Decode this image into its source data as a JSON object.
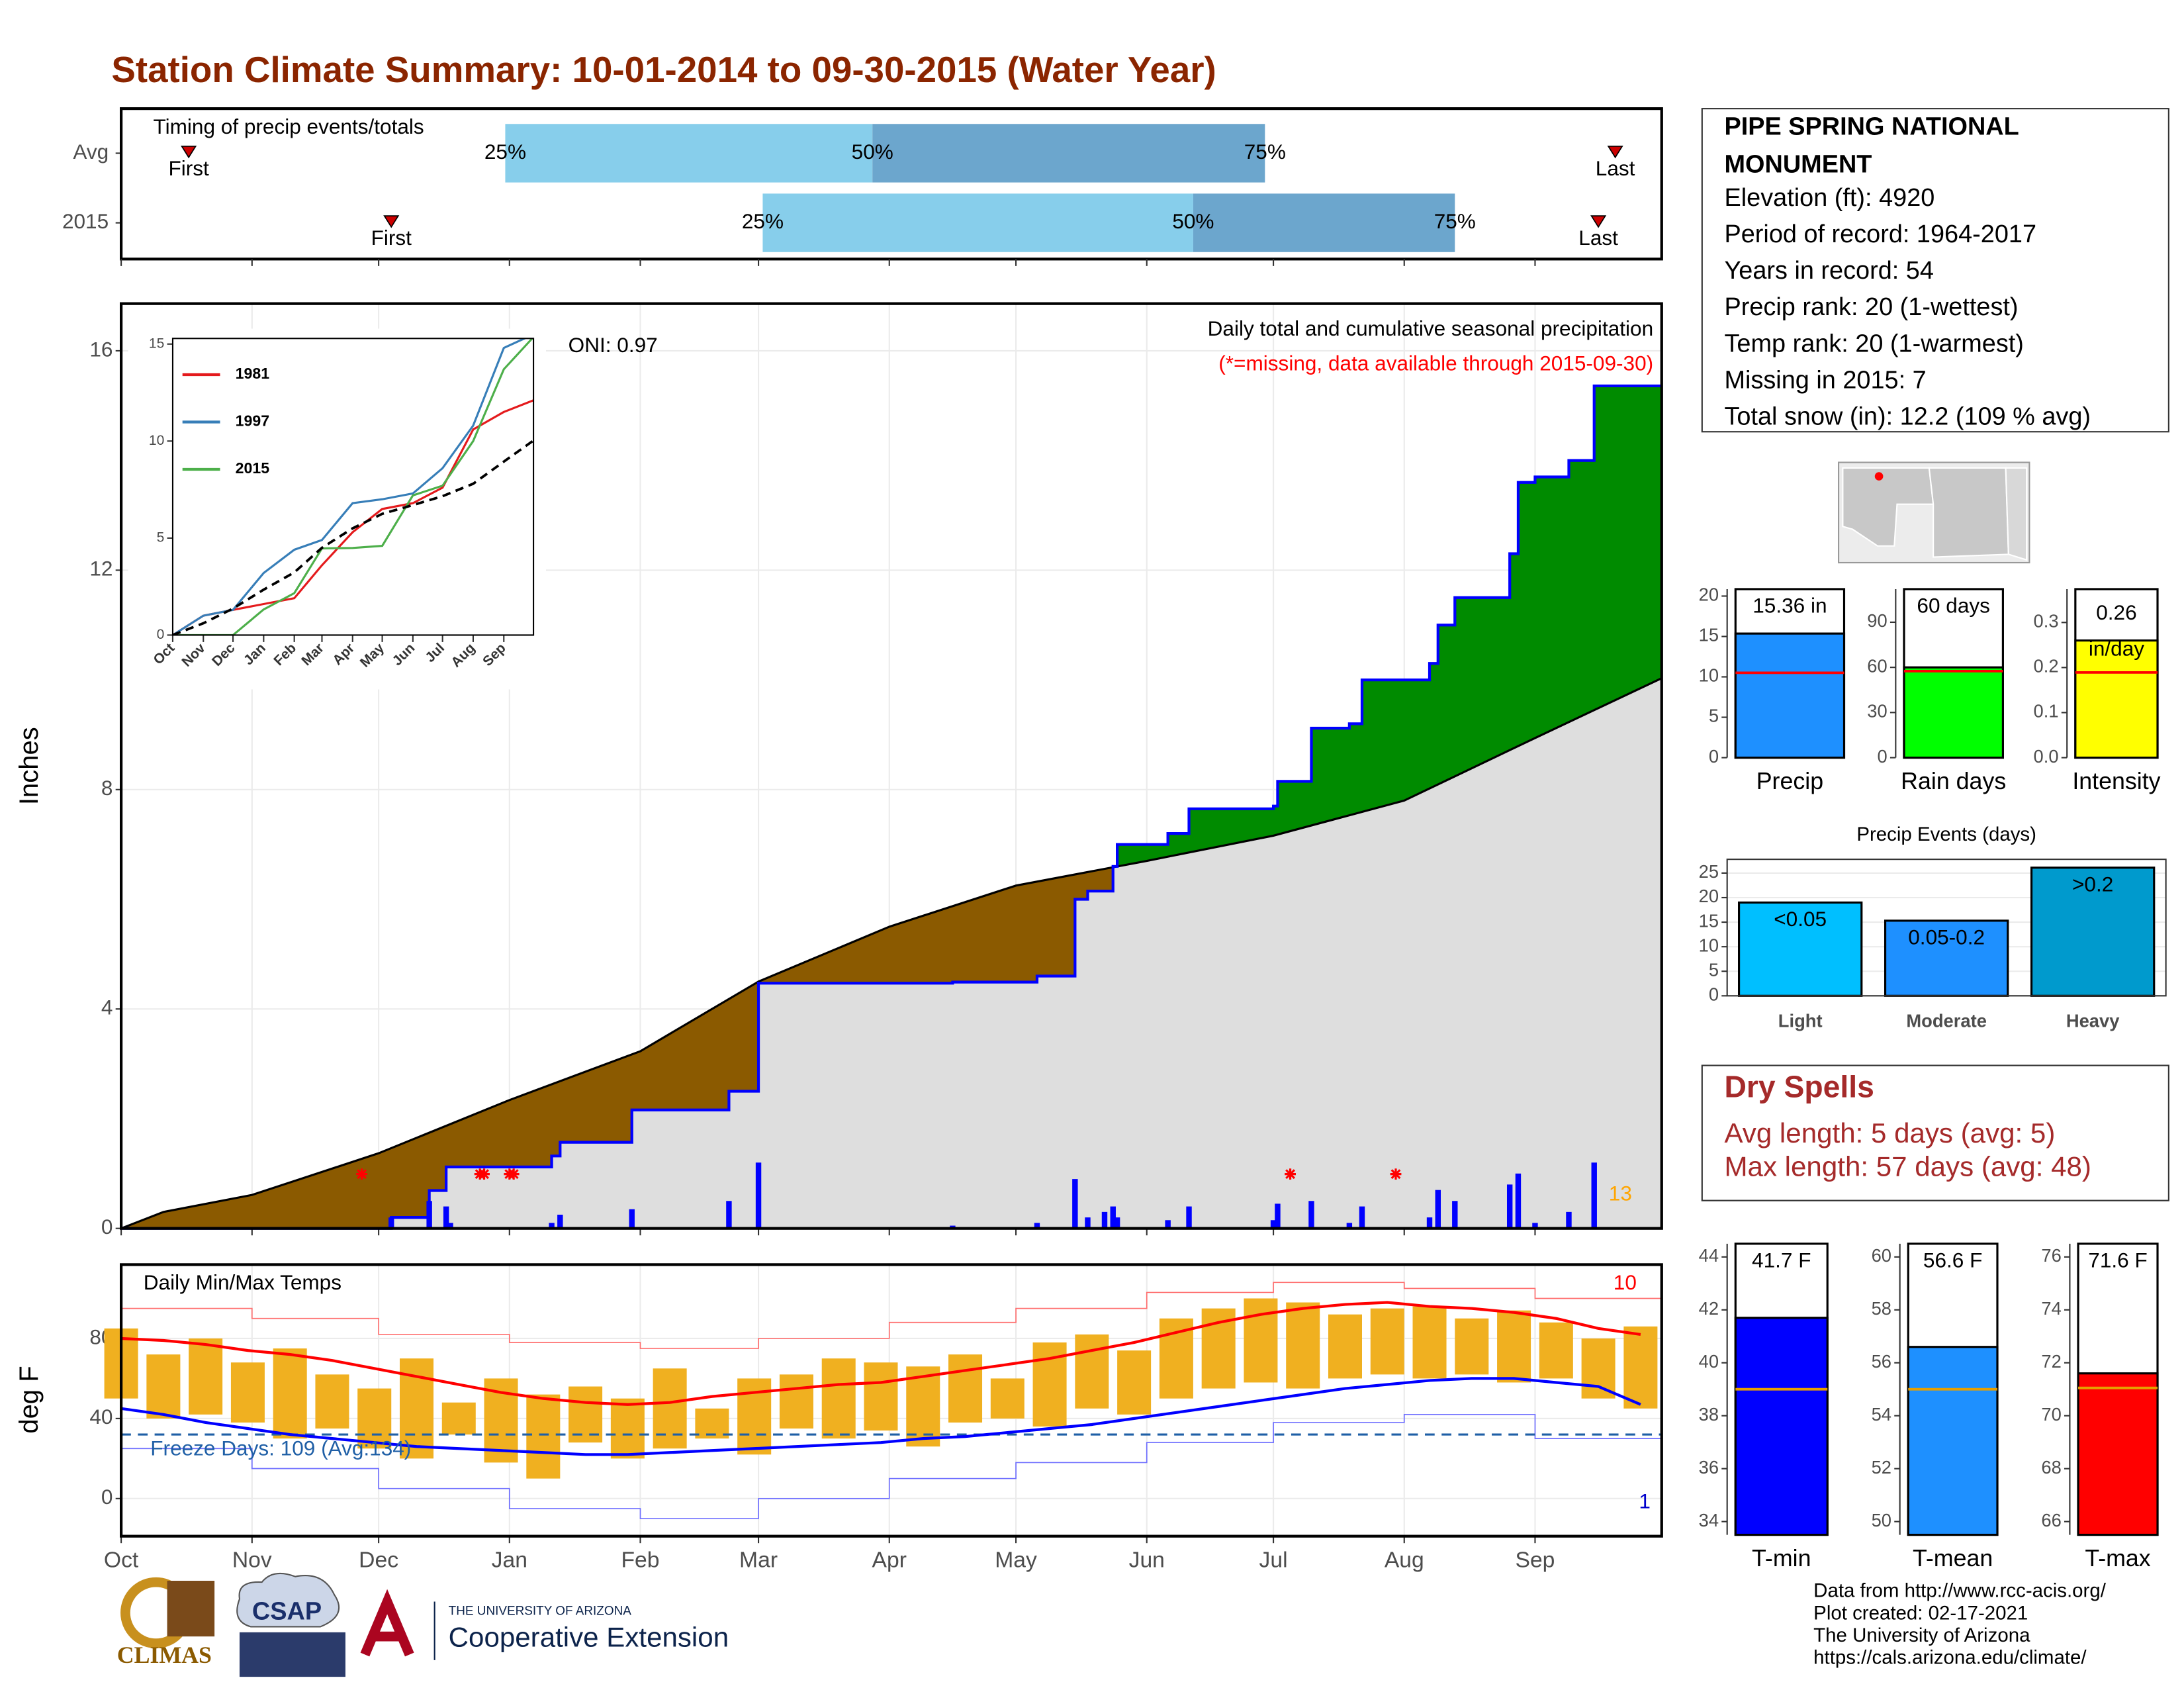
{
  "title": "Station Climate Summary: 10-01-2014 to 09-30-2015 (Water Year)",
  "chart_data": [
    {
      "type": "timing",
      "title": "Timing of precip events/totals",
      "categories": [
        "Avg",
        "2015"
      ],
      "rows": [
        {
          "first": 16,
          "q25": 91,
          "q50": 178,
          "q75": 271,
          "last": 354
        },
        {
          "first": 64,
          "q25": 152,
          "q50": 254,
          "q75": 316,
          "last": 350
        }
      ],
      "quartile_labels": [
        "25%",
        "50%",
        "75%"
      ],
      "first_label": "First",
      "last_label": "Last",
      "colors": [
        "#87ceeb",
        "#6ca6cd"
      ],
      "marker_color": "#cc0000",
      "xlim": [
        0,
        365
      ],
      "xticks": [
        0,
        31,
        61,
        92,
        123,
        151,
        182,
        212,
        243,
        273,
        304,
        335
      ]
    },
    {
      "type": "cumulative",
      "title": "Daily total and cumulative seasonal precipitation",
      "subtitle": "(*=missing, data available through 2015-09-30)",
      "annotation": "ONI: 0.97",
      "y_label": "Inches",
      "record_days": 13,
      "series": [
        {
          "color": "#000000",
          "step": false,
          "x": [
            0,
            10,
            31,
            61,
            92,
            123,
            151,
            182,
            212,
            243,
            273,
            304,
            335,
            365
          ],
          "values": [
            0,
            0.3,
            0.61,
            1.37,
            2.34,
            3.23,
            4.5,
            5.5,
            6.25,
            6.7,
            7.16,
            7.8,
            8.94,
            10.03
          ]
        },
        {
          "color": "#0000ff",
          "step": true,
          "x": [
            0,
            64,
            73,
            77,
            102,
            104,
            121,
            144,
            151,
            197,
            217,
            226,
            229,
            235,
            236,
            248,
            253,
            273,
            274,
            282,
            291,
            294,
            310,
            312,
            316,
            329,
            331,
            335,
            343,
            349,
            365
          ],
          "values": [
            0,
            0.2,
            0.69,
            1.12,
            1.32,
            1.57,
            2.16,
            2.5,
            4.47,
            4.49,
            4.6,
            6.0,
            6.15,
            6.6,
            7.0,
            7.2,
            7.65,
            7.7,
            8.15,
            9.12,
            9.2,
            10.0,
            10.3,
            11.0,
            11.5,
            12.3,
            13.6,
            13.7,
            14.0,
            15.36,
            15.36
          ]
        }
      ],
      "area_colors": {
        "below": "#dedede",
        "deficit": "#8b5a00",
        "surplus": "#008b00"
      },
      "daily": {
        "color": "#0000ff",
        "x": [
          64,
          73,
          77,
          78,
          102,
          104,
          121,
          144,
          151,
          197,
          217,
          226,
          229,
          233,
          235,
          236,
          248,
          253,
          273,
          274,
          282,
          291,
          294,
          310,
          312,
          316,
          329,
          331,
          335,
          343,
          349
        ],
        "values": [
          0.2,
          0.5,
          0.4,
          0.1,
          0.1,
          0.25,
          0.35,
          0.5,
          1.2,
          0.05,
          0.1,
          0.9,
          0.2,
          0.3,
          0.4,
          0.2,
          0.15,
          0.4,
          0.15,
          0.45,
          0.5,
          0.1,
          0.4,
          0.2,
          0.7,
          0.5,
          0.8,
          1.0,
          0.1,
          0.3,
          1.2
        ]
      },
      "missing_x": [
        57,
        85,
        86,
        92,
        93,
        277,
        302
      ],
      "missing_color": "#ff0000",
      "xlim": [
        0,
        365
      ],
      "xticks": [
        0,
        31,
        61,
        92,
        123,
        151,
        182,
        212,
        243,
        273,
        304,
        335
      ],
      "ylim": [
        0,
        16.86
      ],
      "yticks": [
        0,
        4,
        8,
        12,
        16
      ],
      "grid": true
    },
    {
      "type": "line",
      "x": [
        0,
        31,
        61,
        92,
        123,
        151,
        182,
        212,
        243,
        273,
        304,
        335,
        365
      ],
      "series": [
        {
          "name": "1981",
          "color": "#e41a1c",
          "values": [
            0,
            1.0,
            1.3,
            1.6,
            1.9,
            3.6,
            5.3,
            6.5,
            6.8,
            7.6,
            10.6,
            11.5,
            12.1
          ]
        },
        {
          "name": "1997",
          "color": "#377eb8",
          "values": [
            0,
            1.0,
            1.3,
            3.2,
            4.4,
            4.9,
            6.8,
            7.0,
            7.3,
            8.6,
            10.8,
            14.8,
            15.5
          ]
        },
        {
          "name": "2015",
          "color": "#4daf4a",
          "values": [
            0,
            0,
            0,
            1.32,
            2.16,
            4.47,
            4.49,
            4.6,
            7.2,
            7.7,
            10.0,
            13.7,
            15.36
          ]
        },
        {
          "color": "#000000",
          "dash": true,
          "values": [
            0,
            0.61,
            1.37,
            2.34,
            3.23,
            4.5,
            5.5,
            6.25,
            6.7,
            7.16,
            7.8,
            8.94,
            10.03
          ]
        }
      ],
      "xlim": [
        0,
        365
      ],
      "xticks": [
        {
          "value": 0,
          "label": "Oct"
        },
        {
          "value": 31,
          "label": "Nov"
        },
        {
          "value": 61,
          "label": "Dec"
        },
        {
          "value": 92,
          "label": "Jan"
        },
        {
          "value": 123,
          "label": "Feb"
        },
        {
          "value": 151,
          "label": "Mar"
        },
        {
          "value": 182,
          "label": "Apr"
        },
        {
          "value": 212,
          "label": "May"
        },
        {
          "value": 243,
          "label": "Jun"
        },
        {
          "value": 273,
          "label": "Jul"
        },
        {
          "value": 304,
          "label": "Aug"
        },
        {
          "value": 335,
          "label": "Sep"
        }
      ],
      "ylim": [
        0,
        15.29
      ],
      "yticks": [
        0,
        5,
        10,
        15
      ]
    },
    {
      "type": "temperature",
      "title": "Daily Min/Max Temps",
      "annotation": "Freeze Days: 109 (Avg:134)",
      "y_label": "deg F",
      "record_high_days": 10,
      "record_low_days": 1,
      "x": [
        0,
        10,
        20,
        30,
        40,
        50,
        60,
        70,
        80,
        90,
        100,
        110,
        120,
        130,
        140,
        150,
        160,
        170,
        180,
        190,
        200,
        210,
        220,
        230,
        240,
        250,
        260,
        270,
        280,
        290,
        300,
        310,
        320,
        330,
        340,
        350,
        360
      ],
      "max": [
        85,
        72,
        80,
        68,
        75,
        62,
        55,
        70,
        48,
        60,
        52,
        56,
        50,
        65,
        45,
        60,
        62,
        70,
        68,
        66,
        72,
        60,
        78,
        82,
        74,
        90,
        95,
        100,
        98,
        92,
        95,
        96,
        90,
        94,
        88,
        80,
        86
      ],
      "min": [
        50,
        40,
        42,
        38,
        30,
        35,
        25,
        20,
        32,
        18,
        10,
        28,
        20,
        25,
        30,
        22,
        35,
        30,
        34,
        26,
        38,
        40,
        36,
        45,
        42,
        50,
        55,
        58,
        55,
        60,
        62,
        60,
        62,
        58,
        60,
        50,
        45
      ],
      "bar_color": "#f0b020",
      "series": [
        {
          "color": "#ff0000",
          "values": [
            80,
            79,
            77,
            74,
            72,
            69,
            65,
            61,
            57,
            53,
            50,
            48,
            47,
            48,
            51,
            53,
            55,
            57,
            58,
            61,
            64,
            67,
            70,
            74,
            78,
            83,
            88,
            92,
            95,
            97,
            98,
            96,
            95,
            93,
            90,
            85,
            82
          ]
        },
        {
          "color": "#0000ff",
          "values": [
            45,
            42,
            38,
            35,
            32,
            30,
            28,
            26,
            25,
            24,
            23,
            22,
            22,
            23,
            24,
            25,
            26,
            27,
            28,
            30,
            31,
            33,
            35,
            37,
            40,
            43,
            46,
            49,
            52,
            55,
            57,
            59,
            60,
            60,
            58,
            56,
            47
          ]
        }
      ],
      "records": {
        "x": [
          0,
          31,
          61,
          92,
          123,
          151,
          182,
          212,
          243,
          273,
          304,
          335,
          365
        ],
        "series": [
          {
            "color": "#ff7070",
            "values": [
              95,
              90,
              82,
              78,
              75,
              80,
              88,
              95,
              103,
              108,
              105,
              100,
              95
            ]
          },
          {
            "color": "#7070ff",
            "values": [
              25,
              15,
              5,
              -5,
              -10,
              0,
              10,
              18,
              28,
              38,
              42,
              30,
              25
            ]
          }
        ]
      },
      "freeze": 32,
      "freeze_color": "#1f5fa6",
      "xlim": [
        0,
        365
      ],
      "xticks": [
        {
          "value": 0,
          "label": "Oct"
        },
        {
          "value": 31,
          "label": "Nov"
        },
        {
          "value": 61,
          "label": "Dec"
        },
        {
          "value": 92,
          "label": "Jan"
        },
        {
          "value": 123,
          "label": "Feb"
        },
        {
          "value": 151,
          "label": "Mar"
        },
        {
          "value": 182,
          "label": "Apr"
        },
        {
          "value": 212,
          "label": "May"
        },
        {
          "value": 243,
          "label": "Jun"
        },
        {
          "value": 273,
          "label": "Jul"
        },
        {
          "value": 304,
          "label": "Aug"
        },
        {
          "value": 335,
          "label": "Sep"
        }
      ],
      "ylim": [
        -18.8,
        116.9
      ],
      "yticks": [
        0,
        40,
        80
      ],
      "grid": true
    },
    {
      "type": "stat_bar",
      "categories": [
        "Precip"
      ],
      "values": [
        15.36
      ],
      "value_labels": [
        "15.36 in"
      ],
      "color": "#1e90ff",
      "avg": 10.5,
      "avg_color": "#ff0000",
      "ylim": [
        0,
        20.86
      ],
      "yticks": [
        0,
        5,
        10,
        15,
        20
      ]
    },
    {
      "type": "stat_bar",
      "categories": [
        "Rain days"
      ],
      "values": [
        60
      ],
      "value_labels": [
        "60 days"
      ],
      "color": "#00ff00",
      "avg": 57.5,
      "avg_color": "#ff0000",
      "ylim": [
        0,
        112
      ],
      "yticks": [
        0,
        30,
        60,
        90
      ]
    },
    {
      "type": "stat_bar",
      "categories": [
        "Intensity"
      ],
      "values": [
        0.26
      ],
      "value_labels": [
        "0.26\nin/day"
      ],
      "color": "#ffff00",
      "avg": 0.189,
      "avg_color": "#ff0000",
      "ylim": [
        0,
        0.374
      ],
      "yticks": [
        {
          "value": 0,
          "label": "0.0"
        },
        0.1,
        0.2,
        0.3
      ]
    },
    {
      "type": "bar",
      "title": "Precip Events (days)",
      "categories": [
        "Light",
        "Moderate",
        "Heavy"
      ],
      "values": [
        19,
        15.3,
        26.1
      ],
      "bin_labels": [
        "<0.05",
        "0.05-0.2",
        ">0.2"
      ],
      "colors": [
        "#00bfff",
        "#1e90ff",
        "#009acd"
      ],
      "ylim": [
        0,
        27.8
      ],
      "yticks": [
        0,
        5,
        10,
        15,
        20,
        25
      ],
      "grid": true
    },
    {
      "type": "stat_bar",
      "categories": [
        "T-min"
      ],
      "values": [
        41.7
      ],
      "value_labels": [
        "41.7 F"
      ],
      "color": "#0000ff",
      "avg": 39.0,
      "avg_color": "#e69f00",
      "ylim": [
        33.5,
        44.5
      ],
      "yticks": [
        34,
        36,
        38,
        40,
        42,
        44
      ]
    },
    {
      "type": "stat_bar",
      "categories": [
        "T-mean"
      ],
      "values": [
        56.6
      ],
      "value_labels": [
        "56.6 F"
      ],
      "color": "#1e90ff",
      "avg": 55.0,
      "avg_color": "#e69f00",
      "ylim": [
        49.5,
        60.5
      ],
      "yticks": [
        50,
        52,
        54,
        56,
        58,
        60
      ]
    },
    {
      "type": "stat_bar",
      "categories": [
        "T-max"
      ],
      "values": [
        71.6
      ],
      "value_labels": [
        "71.6 F"
      ],
      "color": "#ff0000",
      "avg": 71.05,
      "avg_color": "#e69f00",
      "ylim": [
        65.5,
        76.5
      ],
      "yticks": [
        66,
        68,
        70,
        72,
        74,
        76
      ]
    }
  ],
  "station_box": {
    "title": [
      "PIPE SPRING NATIONAL",
      "MONUMENT"
    ],
    "lines": [
      "Elevation (ft): 4920",
      "Period of record: 1964-2017",
      "Years in record: 54",
      "Precip rank: 20 (1-wettest)",
      "Temp rank: 20 (1-warmest)",
      "Missing in 2015: 7",
      "Total snow (in): 12.2 (109 % avg)"
    ]
  },
  "dry_spells": {
    "title": "Dry Spells",
    "lines": [
      "Avg length: 5 days (avg: 5)",
      "Max length: 57 days (avg: 48)"
    ]
  },
  "footer": [
    "Data from http://www.rcc-acis.org/",
    "Plot created: 02-17-2021",
    "The University of Arizona",
    "https://cals.arizona.edu/climate/"
  ],
  "logos": {
    "climas": "CLIMAS",
    "csap": "CSAP",
    "ua": "THE UNIVERSITY OF ARIZONA",
    "coop": "Cooperative Extension",
    "a": "A"
  }
}
